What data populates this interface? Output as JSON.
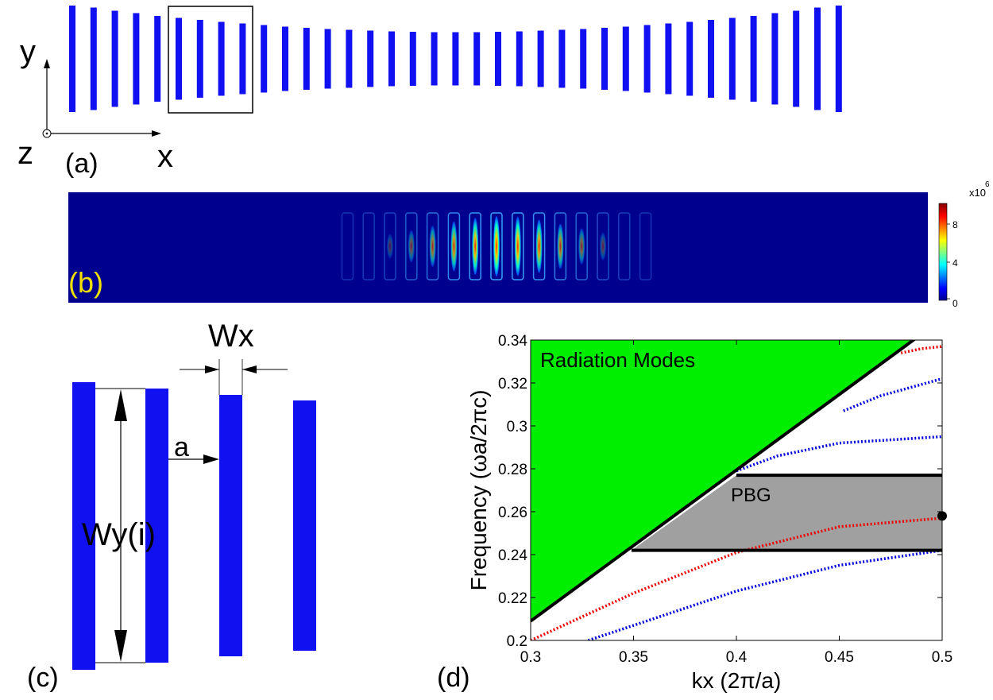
{
  "panel_a": {
    "label": "(a)",
    "axis_y": "y",
    "axis_x": "x",
    "axis_z": "z",
    "bar_heights": [
      134,
      129,
      121,
      115,
      108,
      103,
      98,
      93,
      89,
      85,
      81,
      78,
      75,
      73,
      71,
      69,
      68,
      67,
      67,
      67,
      68,
      69,
      71,
      73,
      75,
      78,
      81,
      85,
      89,
      93,
      98,
      103,
      108,
      115,
      121,
      129,
      134
    ],
    "colors": {
      "bar": "#1010f0"
    }
  },
  "panel_b": {
    "label": "(b)",
    "colorbar_exponent": "x10",
    "colorbar_exponent_power": "6",
    "colorbar_ticks": [
      "8",
      "4",
      "0"
    ],
    "colors": {
      "label": "#f0e000",
      "background": "#00008f"
    }
  },
  "panel_c": {
    "label": "(c)",
    "wx_label": "Wx",
    "a_label": "a",
    "wy_label": "Wy(i)",
    "colors": {
      "bar": "#1010f0"
    }
  },
  "panel_d": {
    "label": "(d)",
    "chart_data": {
      "type": "line",
      "xlabel": "kx (2π/a)",
      "ylabel": "Frequency (ωa/2πc)",
      "xlim": [
        0.3,
        0.5
      ],
      "ylim": [
        0.2,
        0.34
      ],
      "x_ticks": [
        "0.3",
        "0.35",
        "0.4",
        "0.45",
        "0.5"
      ],
      "y_ticks": [
        "0.2",
        "0.22",
        "0.24",
        "0.26",
        "0.28",
        "0.3",
        "0.32",
        "0.34"
      ],
      "light_line": [
        [
          0.3,
          0.209
        ],
        [
          0.486,
          0.34
        ]
      ],
      "radiation_label": "Radiation Modes",
      "pbg_label": "PBG",
      "pbg": {
        "lower": 0.242,
        "upper": 0.277,
        "x_start_lower": 0.349,
        "x_start_upper": 0.4
      },
      "marker": [
        0.5,
        0.258
      ],
      "series": [
        {
          "color": "#0000dd",
          "points": [
            [
              0.328,
              0.2
            ],
            [
              0.35,
              0.207
            ],
            [
              0.4,
              0.223
            ],
            [
              0.45,
              0.235
            ],
            [
              0.5,
              0.242
            ]
          ]
        },
        {
          "color": "#ee0000",
          "points": [
            [
              0.3,
              0.2
            ],
            [
              0.35,
              0.222
            ],
            [
              0.4,
              0.241
            ],
            [
              0.45,
              0.253
            ],
            [
              0.5,
              0.257
            ]
          ]
        },
        {
          "color": "#0000dd",
          "points": [
            [
              0.4,
              0.279
            ],
            [
              0.42,
              0.286
            ],
            [
              0.45,
              0.292
            ],
            [
              0.5,
              0.295
            ]
          ]
        },
        {
          "color": "#0000dd",
          "points": [
            [
              0.452,
              0.307
            ],
            [
              0.47,
              0.314
            ],
            [
              0.5,
              0.322
            ]
          ]
        },
        {
          "color": "#ee0000",
          "points": [
            [
              0.48,
              0.334
            ],
            [
              0.49,
              0.336
            ],
            [
              0.5,
              0.337
            ]
          ]
        }
      ],
      "colors": {
        "radiation": "#00ee00",
        "pbg": "#a0a0a0",
        "line": "#000000"
      }
    }
  }
}
